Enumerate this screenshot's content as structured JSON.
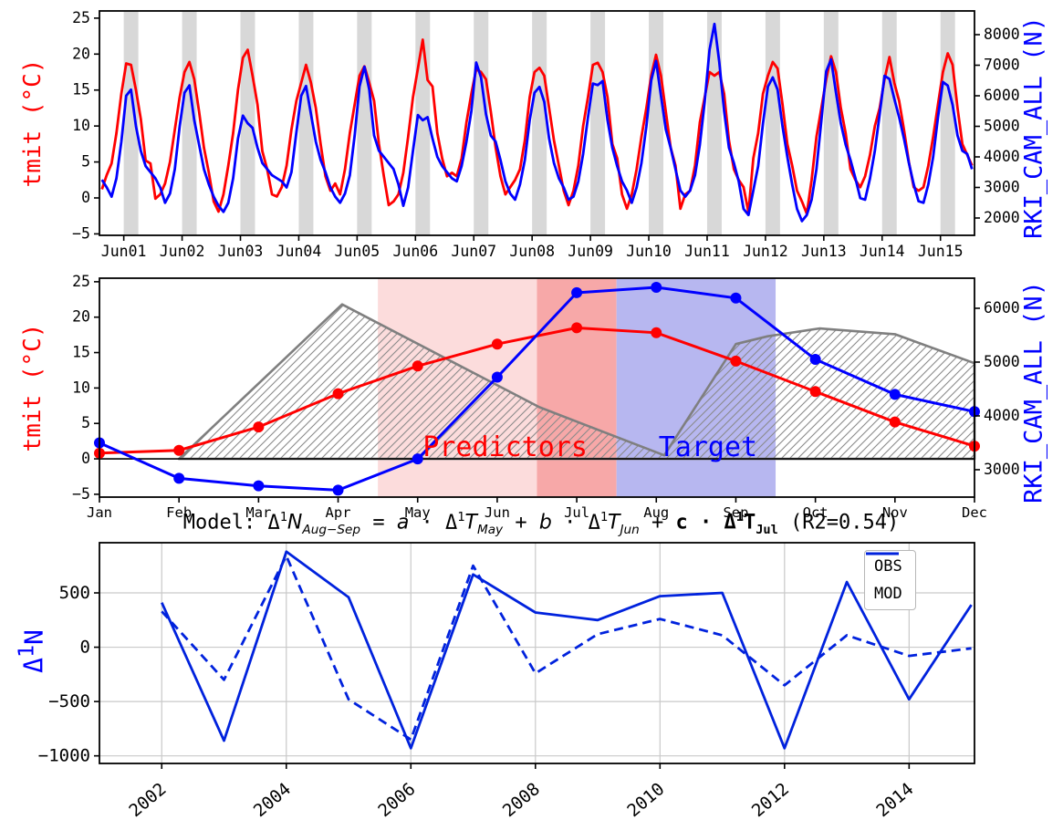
{
  "labels": {
    "tmit_axis": "tmit (°C)",
    "rki_axis": "RKI_CAM_ALL (N)",
    "colors": {
      "tmit": "#ff0000",
      "rki": "#0000ff",
      "obs_mod": "#0022dd"
    }
  },
  "title_segments": [
    {
      "t": "Model:  "
    },
    {
      "t": "Δ"
    },
    {
      "t": "1",
      "v": "sup"
    },
    {
      "t": "N",
      "i": true
    },
    {
      "t": "Aug−Sep",
      "i": true,
      "v": "sub"
    },
    {
      "t": " = "
    },
    {
      "t": "a",
      "i": true
    },
    {
      "t": " · Δ"
    },
    {
      "t": "1",
      "v": "sup"
    },
    {
      "t": "T",
      "i": true
    },
    {
      "t": "May",
      "i": true,
      "v": "sub"
    },
    {
      "t": " + "
    },
    {
      "t": "b",
      "i": true
    },
    {
      "t": " · Δ"
    },
    {
      "t": "1",
      "v": "sup"
    },
    {
      "t": "T",
      "i": true
    },
    {
      "t": "Jun",
      "i": true,
      "v": "sub"
    },
    {
      "t": " + "
    },
    {
      "t": "c · Δ",
      "b": true
    },
    {
      "t": "1",
      "v": "sup",
      "b": true
    },
    {
      "t": "T",
      "b": true
    },
    {
      "t": "Jul",
      "v": "sub",
      "b": true
    },
    {
      "t": " (R2=0.54)"
    }
  ],
  "bottom_ylabel_segments": [
    {
      "t": "Δ"
    },
    {
      "t": "1",
      "v": "sup"
    },
    {
      "t": "N"
    }
  ],
  "chart_data": [
    {
      "id": "top-panel",
      "type": "line",
      "x_mode": "years-monthly",
      "x_domain": [
        2001,
        2016
      ],
      "xtick_labels": [
        "Jun01",
        "Jun02",
        "Jun03",
        "Jun04",
        "Jun05",
        "Jun06",
        "Jun07",
        "Jun08",
        "Jun09",
        "Jun10",
        "Jun11",
        "Jun12",
        "Jun13",
        "Jun14",
        "Jun15"
      ],
      "ylim_left": [
        -5.2,
        26.0
      ],
      "yticks_left": [
        -5,
        0,
        5,
        10,
        15,
        20,
        25
      ],
      "ylabel_left": "tmit (°C)",
      "ylim_right": [
        1433,
        8776
      ],
      "yticks_right": [
        2000,
        3000,
        4000,
        5000,
        6000,
        7000,
        8000
      ],
      "ylabel_right": "RKI_CAM_ALL (N)",
      "june_band": {
        "color": "#d8d8d8",
        "start_month": 6,
        "n_months": 3
      },
      "grid": false,
      "series": [
        {
          "name": "tmit",
          "color": "#ff0000",
          "axis": "left",
          "by_year": [
            [
              1.2,
              3.2,
              4.8,
              9.0,
              14.5,
              18.7,
              18.5,
              15.0,
              11.0,
              5.2,
              4.8,
              -0.1
            ],
            [
              0.5,
              2.0,
              5.0,
              9.5,
              14.0,
              17.5,
              18.9,
              16.5,
              12.0,
              7.0,
              3.5,
              -0.5
            ],
            [
              -1.9,
              0.5,
              4.5,
              9.0,
              15.0,
              19.5,
              20.6,
              17.0,
              13.0,
              6.5,
              4.0,
              0.5
            ],
            [
              0.2,
              1.5,
              4.5,
              9.5,
              13.5,
              16.0,
              18.5,
              16.0,
              12.5,
              7.5,
              3.0,
              1.0
            ],
            [
              2.0,
              0.5,
              4.0,
              9.0,
              13.0,
              17.0,
              18.3,
              16.0,
              13.5,
              7.5,
              3.0,
              -1.0
            ],
            [
              -0.5,
              0.5,
              3.5,
              8.5,
              14.0,
              18.0,
              22.0,
              16.4,
              15.5,
              9.0,
              5.5,
              3.0
            ],
            [
              3.5,
              3.0,
              5.5,
              10.5,
              14.5,
              17.9,
              17.5,
              16.5,
              12.0,
              7.0,
              3.0,
              0.5
            ],
            [
              1.5,
              2.5,
              4.0,
              8.0,
              14.0,
              17.5,
              18.1,
              17.0,
              12.5,
              8.0,
              4.5,
              1.0
            ],
            [
              -1.0,
              1.0,
              4.5,
              10.0,
              14.0,
              18.5,
              18.8,
              17.5,
              14.0,
              7.5,
              5.5,
              0.5
            ],
            [
              -1.5,
              0.5,
              4.0,
              8.5,
              12.5,
              17.0,
              19.9,
              17.0,
              12.0,
              7.0,
              4.5,
              -1.5
            ],
            [
              0.5,
              1.0,
              4.5,
              10.5,
              14.0,
              17.5,
              17.0,
              17.5,
              14.5,
              8.0,
              4.0,
              2.5
            ],
            [
              1.5,
              -2.0,
              5.5,
              9.0,
              14.5,
              17.0,
              18.9,
              18.0,
              13.0,
              7.5,
              4.5,
              1.0
            ],
            [
              -0.5,
              -2.2,
              2.5,
              8.5,
              12.5,
              16.5,
              19.7,
              17.5,
              12.5,
              9.0,
              4.0,
              2.5
            ],
            [
              1.5,
              3.0,
              6.0,
              10.0,
              12.5,
              16.5,
              19.6,
              16.0,
              13.5,
              9.5,
              5.0,
              1.5
            ],
            [
              1.0,
              1.5,
              4.5,
              8.5,
              13.0,
              17.5,
              20.1,
              18.5,
              12.5,
              7.5,
              6.0,
              4.5
            ]
          ]
        },
        {
          "name": "RKI_CAM_ALL",
          "color": "#0000ff",
          "axis": "right",
          "by_year": [
            [
              3250,
              3000,
              2700,
              3300,
              4500,
              6000,
              6200,
              5000,
              4200,
              3700,
              3500,
              3300
            ],
            [
              3000,
              2500,
              2800,
              3600,
              5000,
              6100,
              6340,
              5200,
              4400,
              3600,
              3100,
              2700
            ],
            [
              2400,
              2200,
              2500,
              3300,
              4600,
              5350,
              5100,
              4950,
              4300,
              3800,
              3600,
              3400
            ],
            [
              3300,
              3200,
              3000,
              3500,
              4800,
              6000,
              6320,
              5400,
              4500,
              3900,
              3500,
              3000
            ],
            [
              2700,
              2500,
              2800,
              3400,
              4700,
              6300,
              6950,
              6200,
              4700,
              4200,
              4000,
              3800
            ],
            [
              3600,
              3100,
              2400,
              3000,
              4200,
              5370,
              5200,
              5300,
              4600,
              4000,
              3700,
              3500
            ],
            [
              3300,
              3200,
              3700,
              4500,
              5500,
              7090,
              6600,
              5400,
              4700,
              4500,
              3900,
              3200
            ],
            [
              2800,
              2600,
              3100,
              3900,
              5200,
              6100,
              6290,
              5800,
              4600,
              3800,
              3300,
              3000
            ],
            [
              2600,
              2700,
              3200,
              4100,
              5300,
              6400,
              6350,
              6480,
              5200,
              4300,
              3700,
              3200
            ],
            [
              2900,
              2500,
              3000,
              3800,
              5000,
              6500,
              7140,
              6000,
              4900,
              4300,
              3600,
              2900
            ],
            [
              2700,
              2900,
              3400,
              4400,
              5800,
              7500,
              8350,
              7100,
              5500,
              4300,
              3800,
              3200
            ],
            [
              2300,
              2100,
              2900,
              3700,
              5100,
              6300,
              6600,
              6200,
              5000,
              4000,
              3100,
              2300
            ],
            [
              1900,
              2100,
              2600,
              3600,
              5200,
              6800,
              7190,
              6100,
              5100,
              4400,
              3900,
              3300
            ],
            [
              2650,
              2600,
              3300,
              4200,
              5400,
              6650,
              6550,
              5900,
              5300,
              4600,
              3800,
              3100
            ],
            [
              2550,
              2500,
              3100,
              4000,
              5300,
              6450,
              6330,
              5700,
              4700,
              4200,
              4100,
              3600
            ]
          ]
        }
      ]
    },
    {
      "id": "middle-panel",
      "type": "line",
      "x_mode": "months",
      "months": [
        "Jan",
        "Feb",
        "Mar",
        "Apr",
        "May",
        "Jun",
        "Jul",
        "Aug",
        "Sep",
        "Oct",
        "Nov",
        "Dec"
      ],
      "ylim_left": [
        -5.4,
        25.5
      ],
      "yticks_left": [
        -5,
        0,
        5,
        10,
        15,
        20,
        25
      ],
      "ylabel_left": "tmit (°C)",
      "ylim_right": [
        2491,
        6559
      ],
      "yticks_right": [
        3000,
        4000,
        5000,
        6000
      ],
      "ylabel_right": "RKI_CAM_ALL (N)",
      "grid": false,
      "zero_line": 0,
      "tmit_monthly": [
        0.8,
        1.2,
        4.5,
        9.2,
        13.1,
        16.2,
        18.5,
        17.8,
        13.8,
        9.5,
        5.2,
        1.8
      ],
      "rki_monthly": [
        3500,
        2840,
        2700,
        2620,
        3200,
        4720,
        6290,
        6390,
        6190,
        5050,
        4400,
        4080
      ],
      "hatch_polygon": [
        [
          2,
          0
        ],
        [
          4.05,
          21.8
        ],
        [
          6.53,
          7.3
        ],
        [
          8.1,
          0.5
        ],
        [
          9.0,
          16.2
        ],
        [
          9.4,
          17.3
        ],
        [
          10.05,
          18.4
        ],
        [
          11,
          17.6
        ],
        [
          12,
          13.5
        ],
        [
          12,
          0
        ]
      ],
      "regions": [
        {
          "name": "predictors-may-jun",
          "x0": 4.5,
          "x1": 6.5,
          "color": "#fcdcdc"
        },
        {
          "name": "predictor-jul",
          "x0": 6.5,
          "x1": 7.5,
          "color": "#f7a8a8"
        },
        {
          "name": "target-aug-sep",
          "x0": 7.5,
          "x1": 9.5,
          "color": "#b7b7f0"
        }
      ],
      "region_labels": [
        {
          "text": "Predictors",
          "color": "#ff0000",
          "x": 6.1
        },
        {
          "text": "Target",
          "color": "#0000ff",
          "x": 8.65
        }
      ]
    },
    {
      "id": "bottom-panel",
      "type": "line",
      "x_mode": "years",
      "x_domain": [
        2001,
        2015.05
      ],
      "years": [
        2002,
        2003,
        2004,
        2005,
        2006,
        2007,
        2008,
        2009,
        2010,
        2011,
        2012,
        2013,
        2014,
        2015
      ],
      "xticks": [
        2002,
        2004,
        2006,
        2008,
        2010,
        2012,
        2014
      ],
      "ylim": [
        -1070,
        962
      ],
      "yticks": [
        -1000,
        -500,
        0,
        500
      ],
      "ylabel": "Δ¹N",
      "grid": true,
      "series": [
        {
          "name": "OBS",
          "style": "solid",
          "color": "#0022dd",
          "values": [
            410,
            -860,
            880,
            460,
            -930,
            670,
            320,
            250,
            470,
            500,
            -930,
            600,
            -480,
            390
          ]
        },
        {
          "name": "MOD",
          "style": "dashed",
          "color": "#0022dd",
          "values": [
            330,
            -300,
            840,
            -480,
            -850,
            750,
            -240,
            120,
            260,
            110,
            -350,
            110,
            -80,
            -10
          ]
        }
      ]
    }
  ]
}
